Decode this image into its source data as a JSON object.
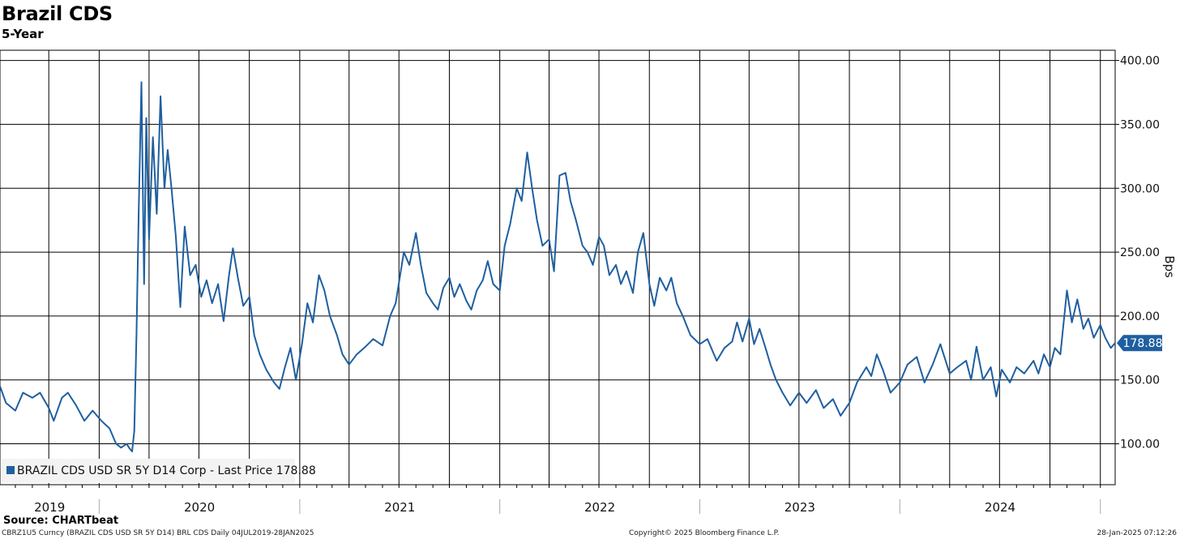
{
  "header": {
    "title": "Brazil CDS",
    "subtitle": "5-Year"
  },
  "footer": {
    "source": "Source: CHARTbeat",
    "left": "CBRZ1U5 Curncy (BRAZIL CDS USD SR 5Y D14) BRL CDS  Daily 04JUL2019-28JAN2025",
    "center": "Copyright© 2025 Bloomberg Finance L.P.",
    "right": "28-Jan-2025 07:12:26"
  },
  "chart_data": {
    "type": "line",
    "title": "Brazil CDS",
    "subtitle": "5-Year",
    "ylabel": "Bps",
    "ylim": [
      68,
      408
    ],
    "yticks": [
      100,
      150,
      200,
      250,
      300,
      350,
      400
    ],
    "ytick_labels": [
      "100.00",
      "150.00",
      "200.00",
      "250.00",
      "300.00",
      "350.00",
      "400.00"
    ],
    "xlim": [
      "2019-07-04",
      "2025-01-28"
    ],
    "x_labels": [
      "2019",
      "2020",
      "2021",
      "2022",
      "2023",
      "2024"
    ],
    "grid": true,
    "legend": "bottom-left",
    "line_color": "#1f5fa0",
    "last_value": 178.88,
    "last_value_label": "178.88",
    "series": [
      {
        "name": "BRAZIL CDS USD SR 5Y D14 Corp - Last Price 178.88",
        "points": [
          [
            "2019-07-04",
            145
          ],
          [
            "2019-07-15",
            132
          ],
          [
            "2019-08-01",
            126
          ],
          [
            "2019-08-15",
            140
          ],
          [
            "2019-09-01",
            136
          ],
          [
            "2019-09-15",
            140
          ],
          [
            "2019-10-01",
            128
          ],
          [
            "2019-10-10",
            118
          ],
          [
            "2019-10-25",
            136
          ],
          [
            "2019-11-05",
            140
          ],
          [
            "2019-11-20",
            130
          ],
          [
            "2019-12-05",
            118
          ],
          [
            "2019-12-20",
            126
          ],
          [
            "2020-01-05",
            118
          ],
          [
            "2020-01-20",
            112
          ],
          [
            "2020-02-01",
            100
          ],
          [
            "2020-02-10",
            97
          ],
          [
            "2020-02-20",
            100
          ],
          [
            "2020-02-26",
            96
          ],
          [
            "2020-03-01",
            94
          ],
          [
            "2020-03-05",
            110
          ],
          [
            "2020-03-09",
            185
          ],
          [
            "2020-03-13",
            280
          ],
          [
            "2020-03-18",
            383
          ],
          [
            "2020-03-23",
            225
          ],
          [
            "2020-03-27",
            355
          ],
          [
            "2020-04-01",
            260
          ],
          [
            "2020-04-08",
            340
          ],
          [
            "2020-04-15",
            280
          ],
          [
            "2020-04-22",
            372
          ],
          [
            "2020-04-29",
            300
          ],
          [
            "2020-05-05",
            330
          ],
          [
            "2020-05-12",
            300
          ],
          [
            "2020-05-20",
            262
          ],
          [
            "2020-05-28",
            207
          ],
          [
            "2020-06-05",
            270
          ],
          [
            "2020-06-15",
            232
          ],
          [
            "2020-06-25",
            240
          ],
          [
            "2020-07-05",
            215
          ],
          [
            "2020-07-15",
            228
          ],
          [
            "2020-07-25",
            210
          ],
          [
            "2020-08-05",
            225
          ],
          [
            "2020-08-15",
            196
          ],
          [
            "2020-08-25",
            232
          ],
          [
            "2020-09-01",
            253
          ],
          [
            "2020-09-10",
            230
          ],
          [
            "2020-09-20",
            208
          ],
          [
            "2020-10-01",
            215
          ],
          [
            "2020-10-10",
            185
          ],
          [
            "2020-10-20",
            170
          ],
          [
            "2020-11-01",
            158
          ],
          [
            "2020-11-15",
            148
          ],
          [
            "2020-11-25",
            143
          ],
          [
            "2020-12-05",
            160
          ],
          [
            "2020-12-15",
            175
          ],
          [
            "2020-12-25",
            150
          ],
          [
            "2021-01-05",
            178
          ],
          [
            "2021-01-15",
            210
          ],
          [
            "2021-01-25",
            195
          ],
          [
            "2021-02-05",
            232
          ],
          [
            "2021-02-15",
            220
          ],
          [
            "2021-02-25",
            200
          ],
          [
            "2021-03-10",
            185
          ],
          [
            "2021-03-20",
            170
          ],
          [
            "2021-04-01",
            162
          ],
          [
            "2021-04-15",
            170
          ],
          [
            "2021-05-01",
            176
          ],
          [
            "2021-05-15",
            182
          ],
          [
            "2021-06-01",
            177
          ],
          [
            "2021-06-15",
            200
          ],
          [
            "2021-06-25",
            210
          ],
          [
            "2021-07-10",
            250
          ],
          [
            "2021-07-20",
            240
          ],
          [
            "2021-08-01",
            265
          ],
          [
            "2021-08-10",
            240
          ],
          [
            "2021-08-20",
            218
          ],
          [
            "2021-09-01",
            210
          ],
          [
            "2021-09-10",
            205
          ],
          [
            "2021-09-20",
            222
          ],
          [
            "2021-10-01",
            230
          ],
          [
            "2021-10-10",
            215
          ],
          [
            "2021-10-20",
            225
          ],
          [
            "2021-11-01",
            212
          ],
          [
            "2021-11-10",
            205
          ],
          [
            "2021-11-20",
            220
          ],
          [
            "2021-12-01",
            228
          ],
          [
            "2021-12-10",
            243
          ],
          [
            "2021-12-20",
            225
          ],
          [
            "2022-01-01",
            220
          ],
          [
            "2022-01-10",
            255
          ],
          [
            "2022-01-20",
            272
          ],
          [
            "2022-02-01",
            300
          ],
          [
            "2022-02-10",
            290
          ],
          [
            "2022-02-20",
            328
          ],
          [
            "2022-03-01",
            300
          ],
          [
            "2022-03-10",
            275
          ],
          [
            "2022-03-20",
            255
          ],
          [
            "2022-04-01",
            260
          ],
          [
            "2022-04-10",
            235
          ],
          [
            "2022-04-20",
            310
          ],
          [
            "2022-05-01",
            312
          ],
          [
            "2022-05-10",
            290
          ],
          [
            "2022-05-20",
            275
          ],
          [
            "2022-06-01",
            255
          ],
          [
            "2022-06-10",
            250
          ],
          [
            "2022-06-20",
            240
          ],
          [
            "2022-07-01",
            262
          ],
          [
            "2022-07-10",
            255
          ],
          [
            "2022-07-20",
            232
          ],
          [
            "2022-08-01",
            240
          ],
          [
            "2022-08-10",
            225
          ],
          [
            "2022-08-20",
            235
          ],
          [
            "2022-09-01",
            218
          ],
          [
            "2022-09-10",
            250
          ],
          [
            "2022-09-20",
            265
          ],
          [
            "2022-10-01",
            225
          ],
          [
            "2022-10-10",
            208
          ],
          [
            "2022-10-20",
            230
          ],
          [
            "2022-11-01",
            220
          ],
          [
            "2022-11-10",
            230
          ],
          [
            "2022-11-20",
            210
          ],
          [
            "2022-12-01",
            200
          ],
          [
            "2022-12-15",
            185
          ],
          [
            "2023-01-01",
            178
          ],
          [
            "2023-01-15",
            182
          ],
          [
            "2023-02-01",
            165
          ],
          [
            "2023-02-15",
            175
          ],
          [
            "2023-03-01",
            180
          ],
          [
            "2023-03-10",
            195
          ],
          [
            "2023-03-20",
            180
          ],
          [
            "2023-04-01",
            198
          ],
          [
            "2023-04-10",
            178
          ],
          [
            "2023-04-20",
            190
          ],
          [
            "2023-05-01",
            175
          ],
          [
            "2023-05-10",
            162
          ],
          [
            "2023-05-20",
            150
          ],
          [
            "2023-06-01",
            140
          ],
          [
            "2023-06-15",
            130
          ],
          [
            "2023-07-01",
            140
          ],
          [
            "2023-07-15",
            132
          ],
          [
            "2023-08-01",
            142
          ],
          [
            "2023-08-15",
            128
          ],
          [
            "2023-09-01",
            135
          ],
          [
            "2023-09-15",
            122
          ],
          [
            "2023-10-01",
            132
          ],
          [
            "2023-10-15",
            148
          ],
          [
            "2023-11-01",
            160
          ],
          [
            "2023-11-10",
            153
          ],
          [
            "2023-11-20",
            170
          ],
          [
            "2023-12-01",
            158
          ],
          [
            "2023-12-15",
            140
          ],
          [
            "2024-01-01",
            148
          ],
          [
            "2024-01-15",
            162
          ],
          [
            "2024-02-01",
            168
          ],
          [
            "2024-02-15",
            148
          ],
          [
            "2024-03-01",
            162
          ],
          [
            "2024-03-15",
            178
          ],
          [
            "2024-04-01",
            155
          ],
          [
            "2024-04-15",
            160
          ],
          [
            "2024-05-01",
            165
          ],
          [
            "2024-05-10",
            150
          ],
          [
            "2024-05-20",
            176
          ],
          [
            "2024-06-01",
            150
          ],
          [
            "2024-06-15",
            160
          ],
          [
            "2024-06-25",
            137
          ],
          [
            "2024-07-05",
            158
          ],
          [
            "2024-07-20",
            148
          ],
          [
            "2024-08-01",
            160
          ],
          [
            "2024-08-15",
            155
          ],
          [
            "2024-09-01",
            165
          ],
          [
            "2024-09-10",
            155
          ],
          [
            "2024-09-20",
            170
          ],
          [
            "2024-10-01",
            160
          ],
          [
            "2024-10-10",
            175
          ],
          [
            "2024-10-20",
            170
          ],
          [
            "2024-11-01",
            220
          ],
          [
            "2024-11-10",
            195
          ],
          [
            "2024-11-20",
            213
          ],
          [
            "2024-12-01",
            190
          ],
          [
            "2024-12-10",
            198
          ],
          [
            "2024-12-20",
            183
          ],
          [
            "2025-01-01",
            193
          ],
          [
            "2025-01-10",
            183
          ],
          [
            "2025-01-20",
            175
          ],
          [
            "2025-01-28",
            178.88
          ]
        ]
      }
    ]
  }
}
